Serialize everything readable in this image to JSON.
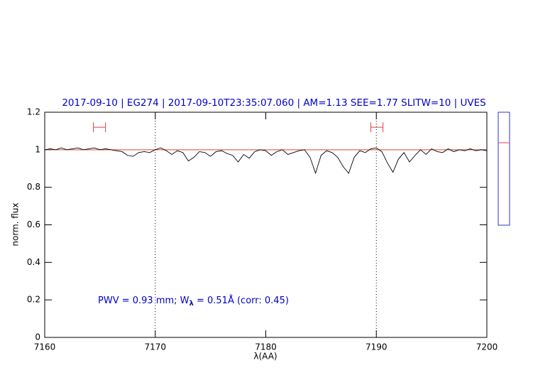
{
  "chart_data": {
    "type": "line",
    "title": "2017-09-10 | EG274 | 2017-09-10T23:35:07.060 | AM=1.13 SEE=1.77 SLITW=10 | UVES",
    "xlabel": "λ(AA)",
    "ylabel": "norm. flux",
    "annotation": [
      "PWV = 0.93 mm; W",
      "λ",
      " = 0.51Å (corr: 0.45)"
    ],
    "color": "#000000",
    "x": [
      7160,
      7160.5,
      7161,
      7161.5,
      7162,
      7162.5,
      7163,
      7163.5,
      7164,
      7164.5,
      7165,
      7165.5,
      7166,
      7166.5,
      7167,
      7167.5,
      7168,
      7168.5,
      7169,
      7169.5,
      7170,
      7170.5,
      7171,
      7171.5,
      7172,
      7172.5,
      7173,
      7173.5,
      7174,
      7174.5,
      7175,
      7175.5,
      7176,
      7176.5,
      7177,
      7177.5,
      7178,
      7178.5,
      7179,
      7179.5,
      7180,
      7180.5,
      7181,
      7181.5,
      7182,
      7182.5,
      7183,
      7183.5,
      7184,
      7184.5,
      7185,
      7185.5,
      7186,
      7186.5,
      7187,
      7187.5,
      7188,
      7188.5,
      7189,
      7189.5,
      7190,
      7190.5,
      7191,
      7191.5,
      7192,
      7192.5,
      7193,
      7193.5,
      7194,
      7194.5,
      7195,
      7195.5,
      7196,
      7196.5,
      7197,
      7197.5,
      7198,
      7198.5,
      7199,
      7199.5,
      7200
    ],
    "values": [
      1.0,
      1.005,
      1.0,
      1.01,
      1.0,
      1.005,
      1.01,
      1.0,
      1.005,
      1.01,
      1.0,
      1.005,
      1.0,
      0.995,
      0.99,
      0.97,
      0.965,
      0.985,
      0.99,
      0.985,
      1.0,
      1.01,
      0.995,
      0.975,
      0.995,
      0.985,
      0.94,
      0.96,
      0.99,
      0.985,
      0.965,
      0.99,
      0.995,
      0.98,
      0.97,
      0.935,
      0.975,
      0.955,
      0.99,
      1.0,
      0.995,
      0.97,
      0.99,
      1.0,
      0.975,
      0.985,
      0.995,
      1.0,
      0.96,
      0.875,
      0.97,
      0.995,
      0.985,
      0.96,
      0.91,
      0.875,
      0.96,
      0.995,
      0.985,
      1.005,
      1.01,
      0.99,
      0.93,
      0.88,
      0.95,
      0.985,
      0.935,
      0.97,
      1.0,
      0.975,
      1.005,
      0.99,
      0.985,
      1.005,
      0.99,
      1.0,
      0.995,
      1.005,
      0.995,
      1.0,
      0.995
    ],
    "continuum": {
      "x": [
        7160,
        7200
      ],
      "values": [
        1,
        1
      ],
      "color": "#e04040"
    },
    "markers": [
      7170,
      7190
    ],
    "ranges": [
      {
        "lo": 7164.4,
        "hi": 7165.5,
        "y": 1.12
      },
      {
        "lo": 7189.5,
        "hi": 7190.6,
        "y": 1.12
      }
    ],
    "range_color": "#e04040",
    "xlim": [
      7160,
      7200
    ],
    "xticks": [
      7160,
      7170,
      7180,
      7190,
      7200
    ],
    "ylim": [
      0,
      1.2
    ],
    "yticks": [
      0,
      0.2,
      0.4,
      0.6,
      0.8,
      1,
      1.2
    ]
  }
}
